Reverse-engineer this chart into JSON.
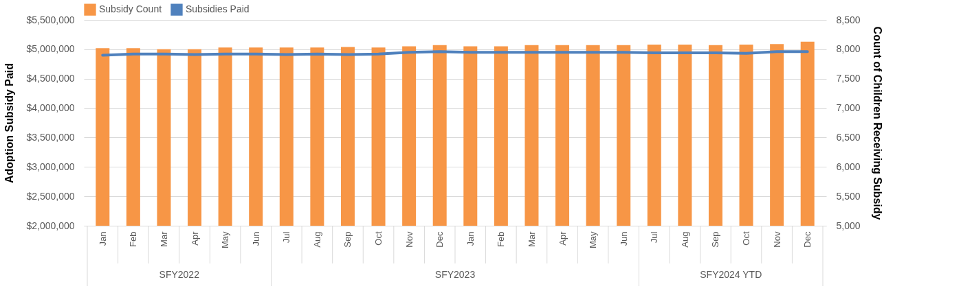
{
  "chart_data": {
    "type": "bar",
    "categories": [
      "Jan",
      "Feb",
      "Mar",
      "Apr",
      "May",
      "Jun",
      "Jul",
      "Aug",
      "Sep",
      "Oct",
      "Nov",
      "Dec",
      "Jan",
      "Feb",
      "Mar",
      "Apr",
      "May",
      "Jun",
      "Jul",
      "Aug",
      "Sep",
      "Oct",
      "Nov",
      "Dec"
    ],
    "series": [
      {
        "name": "Subsidy Count",
        "axis": "y2",
        "color": "#f79646",
        "values": [
          8020,
          8020,
          8000,
          8000,
          8030,
          8030,
          8030,
          8030,
          8040,
          8030,
          8050,
          8070,
          8050,
          8050,
          8070,
          8070,
          8070,
          8070,
          8080,
          8080,
          8070,
          8080,
          8090,
          8130
        ]
      },
      {
        "name": "Subsidies Paid",
        "type": "line",
        "color": "#4f81bd",
        "values": [
          4900000,
          4920000,
          4920000,
          4910000,
          4920000,
          4920000,
          4910000,
          4920000,
          4910000,
          4920000,
          4950000,
          4960000,
          4950000,
          4950000,
          4950000,
          4950000,
          4950000,
          4950000,
          4940000,
          4940000,
          4940000,
          4930000,
          4960000,
          4960000
        ]
      }
    ],
    "ylabel": "Adoption Subsidy Paid",
    "y2label": "Count of Children Receiving Subsidy",
    "ylim": [
      2000000,
      5500000
    ],
    "yticks": [
      {
        "value": 2000000,
        "label": "$2,000,000"
      },
      {
        "value": 2500000,
        "label": "$2,500,000"
      },
      {
        "value": 3000000,
        "label": "$3,000,000"
      },
      {
        "value": 3500000,
        "label": "$3,500,000"
      },
      {
        "value": 4000000,
        "label": "$4,000,000"
      },
      {
        "value": 4500000,
        "label": "$4,500,000"
      },
      {
        "value": 5000000,
        "label": "$5,000,000"
      },
      {
        "value": 5500000,
        "label": "$5,500,000"
      }
    ],
    "y2lim": [
      5000,
      8500
    ],
    "y2ticks": [
      {
        "value": 5000,
        "label": "5,000"
      },
      {
        "value": 5500,
        "label": "5,500"
      },
      {
        "value": 6000,
        "label": "6,000"
      },
      {
        "value": 6500,
        "label": "6,500"
      },
      {
        "value": 7000,
        "label": "7,000"
      },
      {
        "value": 7500,
        "label": "7,500"
      },
      {
        "value": 8000,
        "label": "8,000"
      },
      {
        "value": 8500,
        "label": "8,500"
      }
    ],
    "annotations": [
      "SFY2022",
      "SFY2023",
      "SFY2024 YTD"
    ],
    "grid": "y",
    "legend": "top"
  }
}
